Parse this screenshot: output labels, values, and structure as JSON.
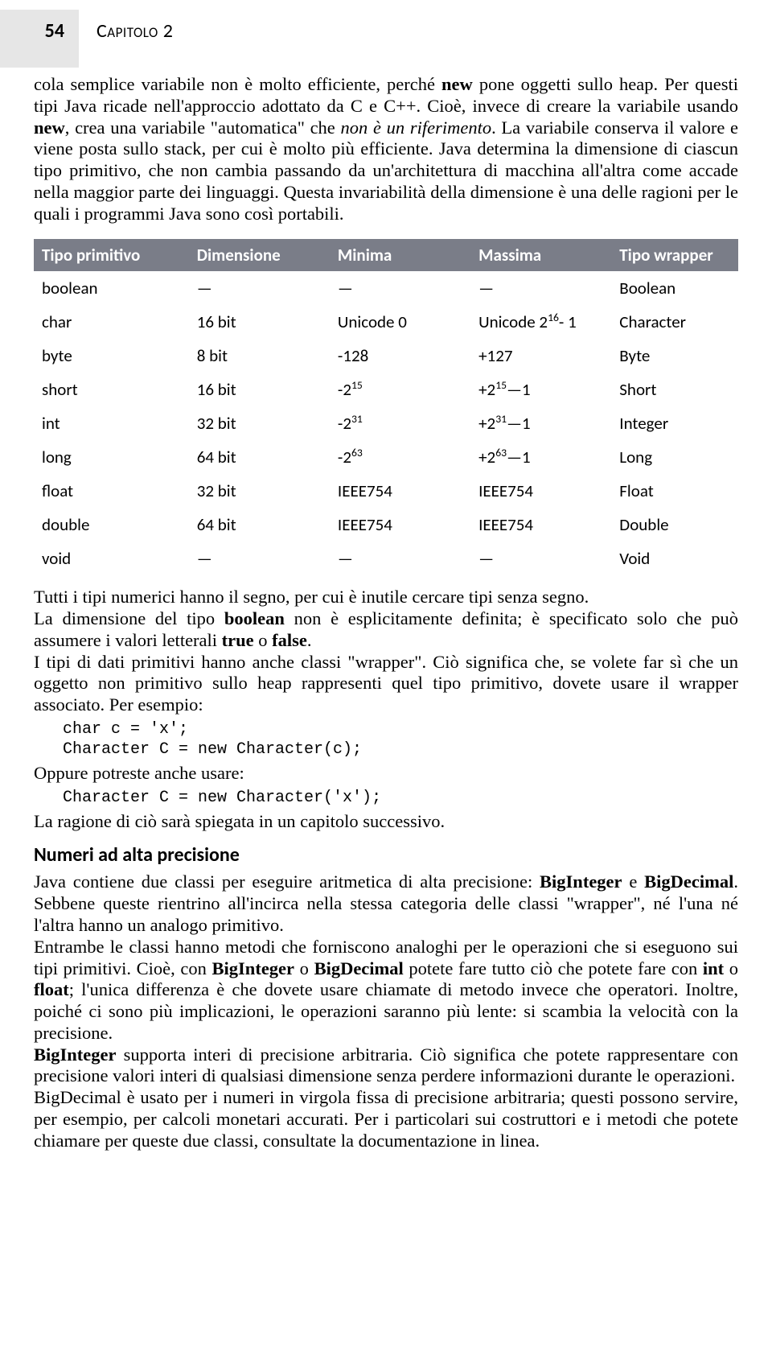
{
  "header": {
    "page_number": "54",
    "chapter_label": "Capitolo 2"
  },
  "intro_para_html": "cola semplice variabile non è molto efficiente, perché <b>new</b> pone oggetti sullo heap. Per questi tipi Java ricade nell'approccio adottato da C e C++. Cioè, invece di creare la variabile usando <b>new</b>, crea una variabile \"automatica\" che <i>non è un riferimento</i>. La variabile conserva il valore e viene posta sullo stack, per cui è molto più efficiente. Java determina la dimensione di ciascun tipo primitivo, che non cambia passando da un'architettura di macchina all'altra come accade nella maggior parte dei linguaggi. Questa invariabilità della dimensione è una delle ragioni per le quali i programmi Java sono così portabili.",
  "primitive_table": {
    "header_bg": "#7a7d88",
    "header_fg": "#ffffff",
    "col_widths": [
      "22%",
      "20%",
      "20%",
      "20%",
      "18%"
    ],
    "columns": [
      "Tipo primitivo",
      "Dimensione",
      "Minima",
      "Massima",
      "Tipo wrapper"
    ],
    "rows": [
      [
        "boolean",
        "—",
        "—",
        "—",
        "Boolean"
      ],
      [
        "char",
        "16 bit",
        "Unicode 0",
        "Unicode 2<sup>16</sup>- 1",
        "Character"
      ],
      [
        "byte",
        "8 bit",
        "-128",
        "+127",
        "Byte"
      ],
      [
        "short",
        "16 bit",
        "-2<sup>15</sup>",
        "+2<sup>15</sup>—1",
        "Short"
      ],
      [
        "int",
        "32 bit",
        "-2<sup>31</sup>",
        "+2<sup>31</sup>—1",
        "Integer"
      ],
      [
        "long",
        "64 bit",
        "-2<sup>63</sup>",
        "+2<sup>63</sup>—1",
        "Long"
      ],
      [
        "float",
        "32 bit",
        "IEEE754",
        "IEEE754",
        "Float"
      ],
      [
        "double",
        "64 bit",
        "IEEE754",
        "IEEE754",
        "Double"
      ],
      [
        "void",
        "—",
        "—",
        "—",
        "Void"
      ]
    ]
  },
  "after_table_paras_html": [
    "Tutti i tipi numerici hanno il segno, per cui è inutile cercare tipi senza segno.",
    "La dimensione del tipo <b>boolean</b> non è esplicitamente definita; è specificato solo che può assumere i valori letterali <b>true</b> o <b>false</b>.",
    "I tipi di dati primitivi hanno anche classi \"wrapper\". Ciò significa che, se volete far sì che un oggetto non primitivo sullo heap rappresenti quel tipo primitivo, dovete usare il wrapper associato. Per esempio:"
  ],
  "code1": "char c = 'x';\nCharacter C = new Character(c);",
  "mid_para": "Oppure potreste anche usare:",
  "code2": "Character C = new Character('x');",
  "after_code_para": "La ragione di ciò sarà spiegata in un capitolo successivo.",
  "section_heading": "Numeri ad alta precisione",
  "precision_paras_html": [
    "Java contiene due classi per eseguire aritmetica di alta precisione: <b>BigInteger</b> e <b>BigDecimal</b>. Sebbene queste rientrino all'incirca nella stessa categoria delle classi \"wrapper\", né l'una né l'altra hanno un analogo primitivo.",
    "Entrambe le classi hanno metodi che forniscono analoghi per le operazioni che si eseguono sui tipi primitivi. Cioè, con <b>BigInteger</b> o <b>BigDecimal</b> potete fare tutto ciò che potete fare con <b>int</b> o <b>float</b>; l'unica differenza è che dovete usare chiamate di metodo invece che operatori. Inoltre, poiché ci sono più implicazioni, le operazioni saranno più lente: si scambia la velocità con la precisione.",
    "<b>BigInteger</b> supporta interi di precisione arbitraria. Ciò significa che potete rappresentare con precisione valori interi di qualsiasi dimensione senza perdere informazioni durante le operazioni.",
    "BigDecimal è usato per i numeri in virgola fissa di precisione arbitraria; questi possono servire, per esempio, per calcoli monetari accurati. Per i particolari sui costruttori e i metodi che potete chiamare per queste due classi, consultate la documentazione in linea."
  ]
}
